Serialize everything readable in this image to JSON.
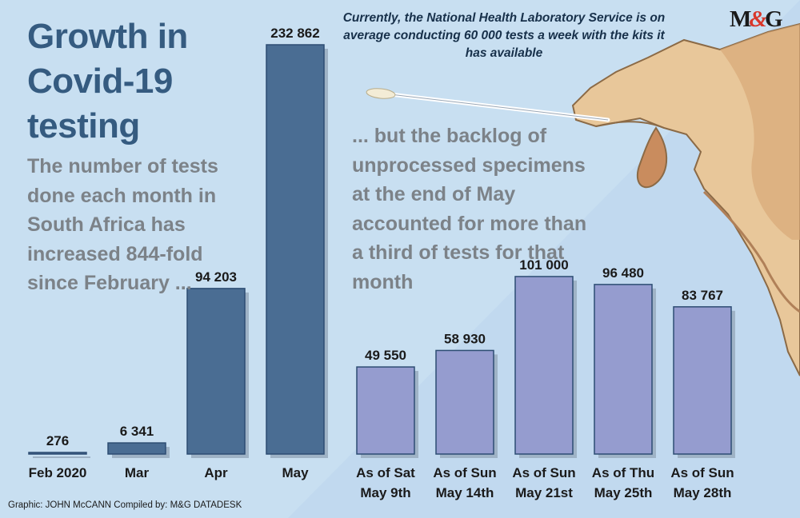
{
  "title": "Growth in Covid-19 testing",
  "subtitle": "The number of tests done each month in South Africa has increased 844-fold since February ...",
  "backlog_text": "... but the backlog of unprocessed specimens at the end of May accounted for more than a third of tests for that month",
  "note": "Currently, the National Health Laboratory Service is on average conducting 60 000 tests a week with the kits it has available",
  "logo": {
    "left": "M",
    "amp": "&",
    "right": "G"
  },
  "credit": "Graphic: JOHN McCANN  Compiled by: M&G DATADESK",
  "colors": {
    "background": "#c8dff1",
    "monthly_bar": "#4a6d93",
    "backlog_bar": "#959ccf",
    "bar_outline": "#2d4d73",
    "title": "#355b80",
    "grey_text": "#7c8288"
  },
  "chart_data": [
    {
      "type": "bar",
      "title": "",
      "categories": [
        [
          "Feb 2020"
        ],
        [
          "Mar"
        ],
        [
          "Apr"
        ],
        [
          "May"
        ]
      ],
      "values": [
        276,
        6341,
        94203,
        232862
      ],
      "labels": [
        "276",
        "6 341",
        "94 203",
        "232 862"
      ],
      "ylim": [
        0,
        232862
      ]
    },
    {
      "type": "bar",
      "title": "",
      "categories": [
        [
          "As of Sat",
          "May 9th"
        ],
        [
          "As of Sun",
          "May 14th"
        ],
        [
          "As of Sun",
          "May 21st"
        ],
        [
          "As of Thu",
          "May 25th"
        ],
        [
          "As of Sun",
          "May 28th"
        ]
      ],
      "values": [
        49550,
        58930,
        101000,
        96480,
        83767
      ],
      "labels": [
        "49 550",
        "58 930",
        "101 000",
        "96 480",
        "83 767"
      ],
      "ylim": [
        0,
        232862
      ]
    }
  ]
}
